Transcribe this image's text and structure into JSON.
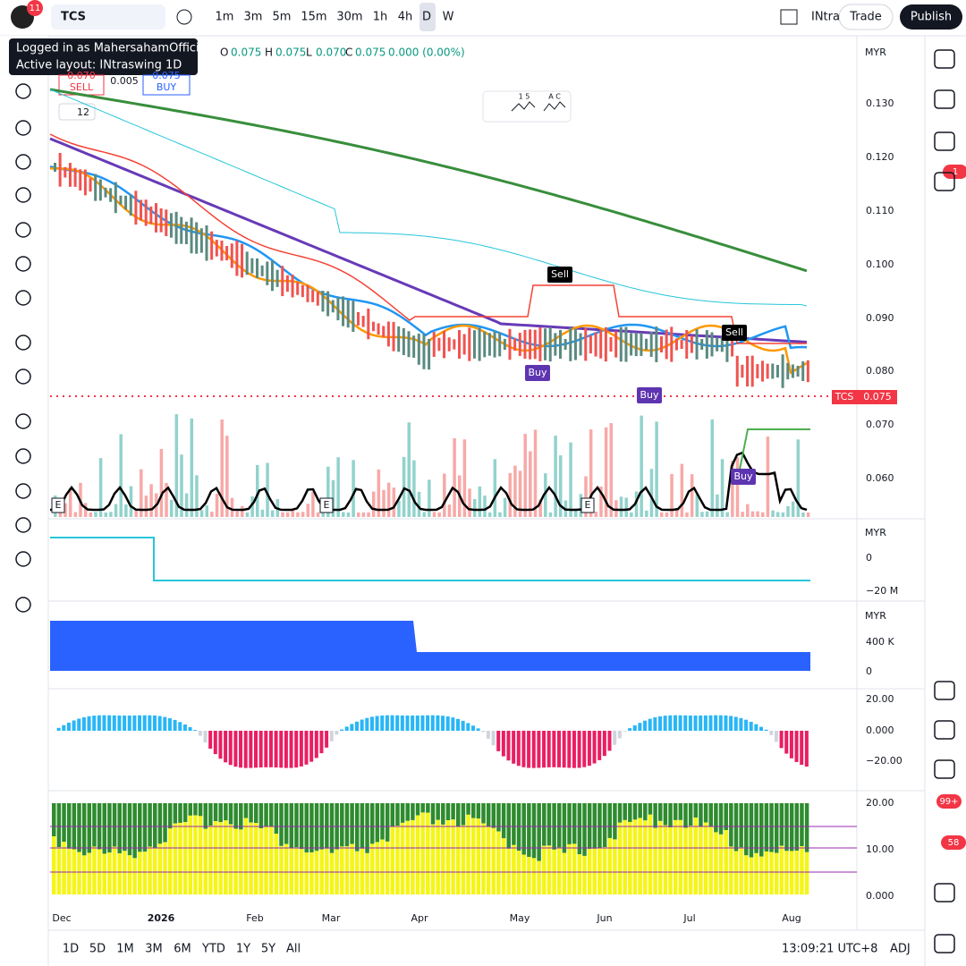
{
  "toolbar": {
    "badge": "11",
    "symbol": "TCS",
    "intervals": [
      "1m",
      "3m",
      "5m",
      "15m",
      "30m",
      "1h",
      "4h",
      "D",
      "W"
    ],
    "layout": "INtra",
    "trade": "Trade",
    "publish": "Publish"
  },
  "tooltip": [
    "Logged in as MahersahamOfficial",
    "Active layout: INtraswing 1D"
  ],
  "legend": {
    "o_label": "O",
    "o": "0.075",
    "h_label": "H",
    "h": "0.075",
    "l_label": "L",
    "l": "0.070",
    "c_label": "C",
    "c": "0.075",
    "change": "0.000 (0.00%)"
  },
  "trade_buttons": {
    "sell_price": "0.070",
    "sell": "SELL",
    "spread": "0.005",
    "buy_price": "0.075",
    "buy": "BUY"
  },
  "indicators": "12",
  "drawing_tools": {
    "a": "1 5",
    "b": "A C"
  },
  "price_axis": {
    "currency": "MYR",
    "labels": [
      "0.130",
      "0.120",
      "0.110",
      "0.100",
      "0.090",
      "0.080",
      "0.070",
      "0.060"
    ],
    "tag_symbol": "TCS",
    "tag_price": "0.075"
  },
  "signals": [
    "Sell",
    "Sell",
    "Buy",
    "Buy",
    "Buy"
  ],
  "earnings": [
    "E",
    "E",
    "E"
  ],
  "pane2": {
    "currency": "MYR",
    "labels": [
      "0",
      "−20 M"
    ]
  },
  "pane3": {
    "currency": "MYR",
    "labels": [
      "400 K",
      "0"
    ]
  },
  "pane4": {
    "labels": [
      "20.00",
      "0.000",
      "−20.00"
    ]
  },
  "pane5": {
    "labels": [
      "20.00",
      "10.00",
      "0.000"
    ]
  },
  "time_axis": [
    "Dec",
    "2026",
    "Feb",
    "Mar",
    "Apr",
    "May",
    "Jun",
    "Jul",
    "Aug"
  ],
  "bottom": {
    "ranges": [
      "1D",
      "5D",
      "1M",
      "3M",
      "6M",
      "YTD",
      "1Y",
      "5Y",
      "All"
    ],
    "clock": "13:09:21 UTC+8",
    "adj": "ADJ"
  },
  "sidebar_badges": [
    "1",
    "99+",
    "58"
  ]
}
